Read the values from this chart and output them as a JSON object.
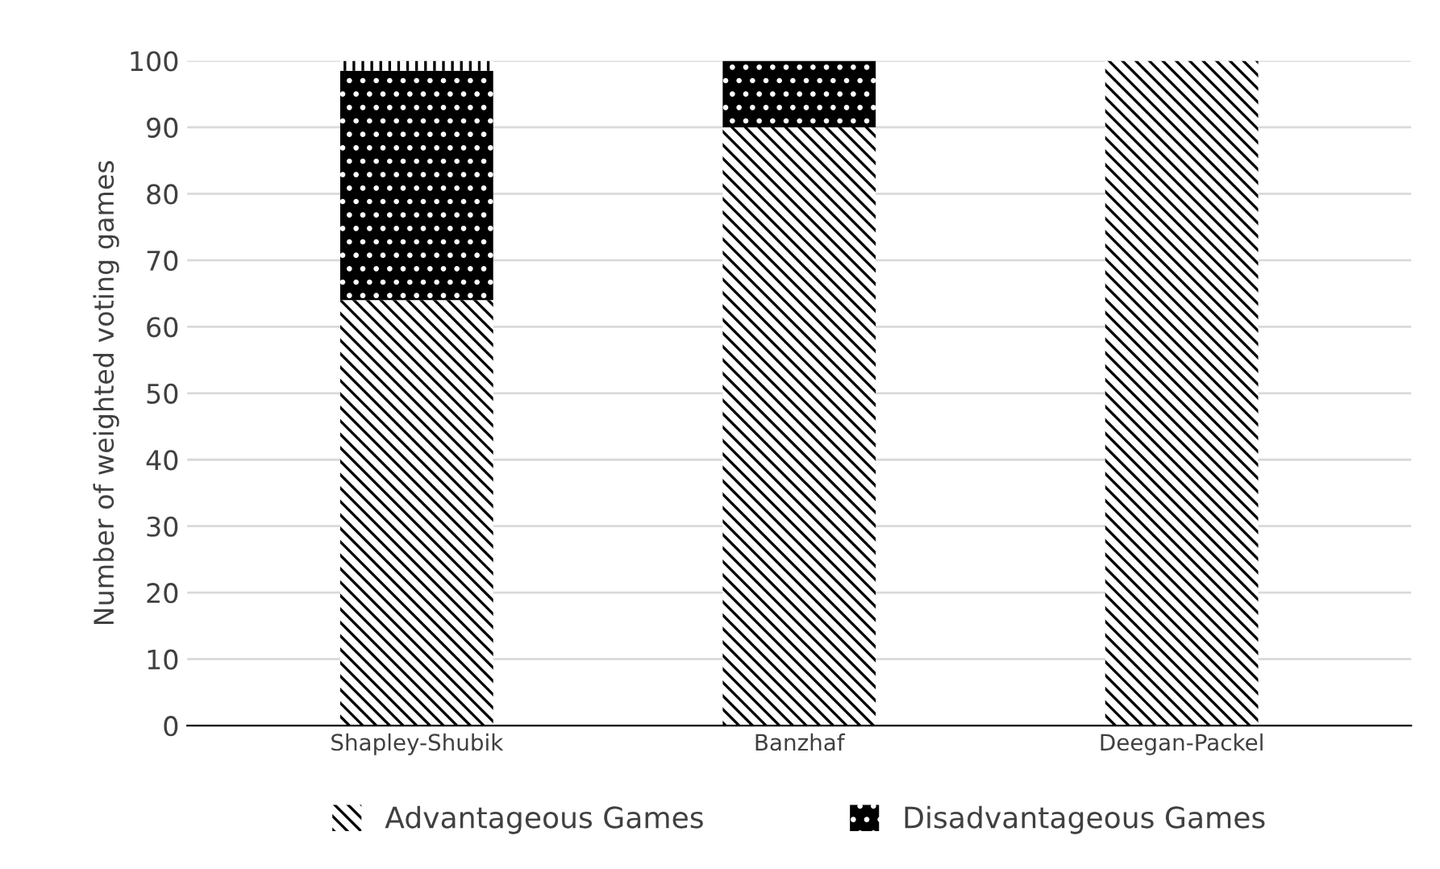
{
  "chart_data": {
    "type": "bar",
    "stacked": true,
    "ylabel": "Number of weighted voting games",
    "categories": [
      "Shapley-Shubik",
      "Banzhaf",
      "Deegan-Packel"
    ],
    "series": [
      {
        "name": "Advantageous Games",
        "color": "#000000",
        "values": [
          64,
          90,
          100
        ]
      },
      {
        "name": "Disadvantageous Games",
        "color": "#000000",
        "values": [
          34.5,
          10,
          0
        ]
      },
      {
        "color": "#000000",
        "values": [
          1.5,
          0,
          0
        ]
      }
    ],
    "ylim": [
      0,
      100
    ],
    "yticks": [
      0,
      10,
      20,
      30,
      40,
      50,
      60,
      70,
      80,
      90,
      100
    ],
    "grid": "y",
    "legend": "bottom"
  }
}
